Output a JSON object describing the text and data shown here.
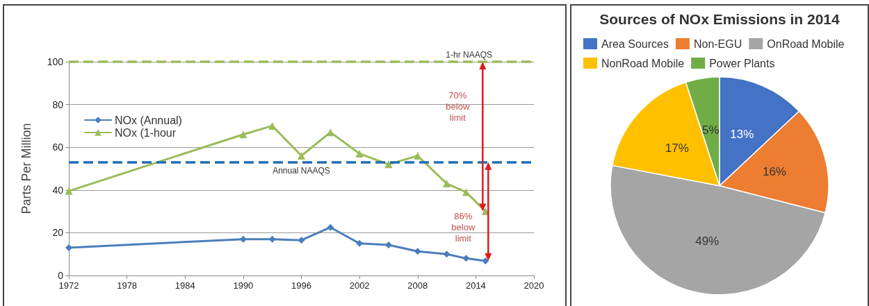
{
  "chart_data": [
    {
      "type": "line",
      "ylabel": "Parts Per Million",
      "xlim": [
        1972,
        2020
      ],
      "xticks": [
        1972,
        1978,
        1984,
        1990,
        1996,
        2002,
        2008,
        2014,
        2020
      ],
      "ylim": [
        0,
        100
      ],
      "yticks": [
        0,
        20,
        40,
        60,
        80,
        100
      ],
      "grid": "y",
      "legend": "top left",
      "line_style": "solid",
      "x": [
        1972,
        1990,
        1993,
        1996,
        1999,
        2002,
        2005,
        2008,
        2011,
        2013,
        2015
      ],
      "series": [
        {
          "name": "NOx (Annual)",
          "color": "#4a7ebb",
          "marker": "diamond",
          "values": [
            13,
            17,
            17,
            16.5,
            22.5,
            15,
            14.3,
            11.3,
            10,
            8,
            6.8
          ]
        },
        {
          "name": "NOx (1-hour",
          "color": "#9bbb59",
          "marker": "triangle",
          "values": [
            39.5,
            66,
            70,
            56,
            67,
            57,
            52,
            56,
            43,
            39,
            30
          ]
        }
      ],
      "ref_lines": [
        {
          "axis": "y",
          "value": 100,
          "label": "1-hr NAAQS",
          "color": "#9bbb59",
          "line_style": "dashed"
        },
        {
          "axis": "y",
          "value": 53,
          "label": "Annual NAAQS",
          "color": "#1f6db5",
          "line_style": "dashed"
        }
      ],
      "annotations": [
        "70% below limit",
        "86% below limit"
      ]
    },
    {
      "type": "pie",
      "title": "Sources of NOx Emissions in 2014",
      "legend": "top",
      "categories": [
        "Area Sources",
        "Non-EGU",
        "OnRoad Mobile",
        "NonRoad Mobile",
        "Power Plants"
      ],
      "values": [
        13,
        16,
        49,
        17,
        5
      ],
      "colors": [
        "#4472c4",
        "#ed7d31",
        "#a5a5a5",
        "#ffc000",
        "#70ad47"
      ],
      "value_labels": [
        "13%",
        "16%",
        "49%",
        "17%",
        "5%"
      ]
    }
  ]
}
